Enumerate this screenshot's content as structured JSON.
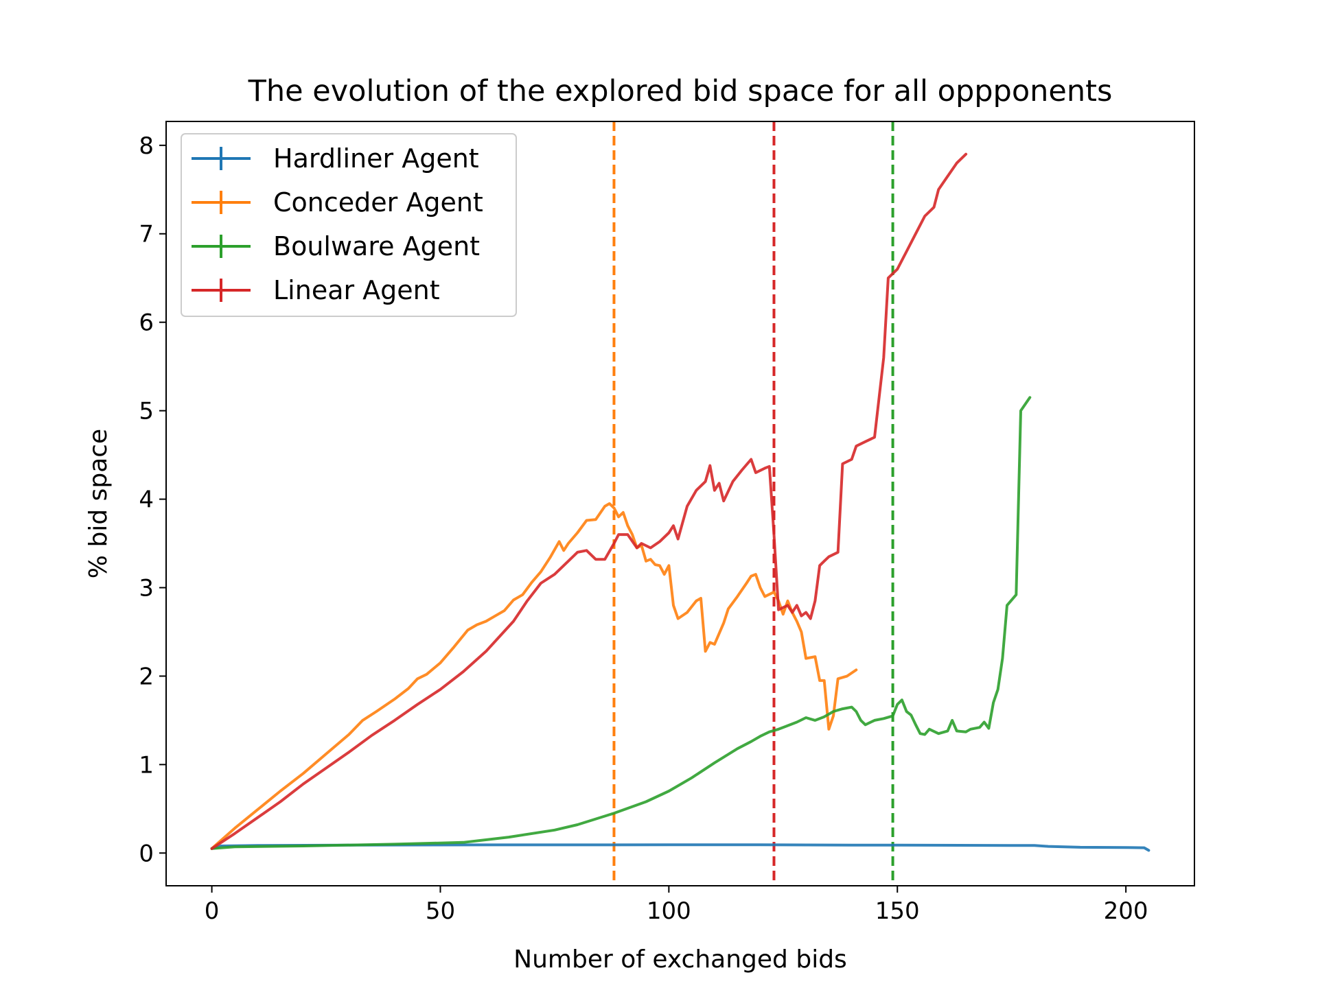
{
  "chart_data": {
    "type": "line",
    "title": "The evolution of the explored bid space for all oppponents",
    "xlabel": "Number of exchanged bids",
    "ylabel": "% bid space",
    "xlim": [
      -10,
      215
    ],
    "ylim": [
      -0.37,
      8.27
    ],
    "xticks": [
      0,
      50,
      100,
      150,
      200
    ],
    "yticks": [
      0,
      1,
      2,
      3,
      4,
      5,
      6,
      7,
      8
    ],
    "legend_position": "upper-left",
    "series": [
      {
        "name": "Hardliner Agent",
        "color": "#1f77b4",
        "points": [
          [
            0,
            0.05
          ],
          [
            2,
            0.08
          ],
          [
            10,
            0.085
          ],
          [
            30,
            0.09
          ],
          [
            60,
            0.092
          ],
          [
            100,
            0.093
          ],
          [
            120,
            0.093
          ],
          [
            140,
            0.09
          ],
          [
            150,
            0.09
          ],
          [
            175,
            0.085
          ],
          [
            180,
            0.085
          ],
          [
            183,
            0.075
          ],
          [
            190,
            0.065
          ],
          [
            200,
            0.063
          ],
          [
            204,
            0.06
          ],
          [
            205,
            0.03
          ]
        ]
      },
      {
        "name": "Conceder Agent",
        "color": "#ff7f0e",
        "points": [
          [
            0,
            0.05
          ],
          [
            5,
            0.28
          ],
          [
            10,
            0.49
          ],
          [
            15,
            0.7
          ],
          [
            20,
            0.9
          ],
          [
            25,
            1.12
          ],
          [
            30,
            1.34
          ],
          [
            33,
            1.5
          ],
          [
            36,
            1.6
          ],
          [
            40,
            1.74
          ],
          [
            43,
            1.86
          ],
          [
            45,
            1.97
          ],
          [
            47,
            2.02
          ],
          [
            50,
            2.15
          ],
          [
            53,
            2.33
          ],
          [
            56,
            2.52
          ],
          [
            58,
            2.58
          ],
          [
            60,
            2.62
          ],
          [
            62,
            2.68
          ],
          [
            64,
            2.74
          ],
          [
            66,
            2.86
          ],
          [
            68,
            2.92
          ],
          [
            70,
            3.06
          ],
          [
            72,
            3.18
          ],
          [
            74,
            3.34
          ],
          [
            76,
            3.52
          ],
          [
            77,
            3.42
          ],
          [
            78,
            3.5
          ],
          [
            80,
            3.62
          ],
          [
            82,
            3.76
          ],
          [
            84,
            3.77
          ],
          [
            86,
            3.92
          ],
          [
            87,
            3.95
          ],
          [
            88,
            3.9
          ],
          [
            89,
            3.8
          ],
          [
            90,
            3.85
          ],
          [
            91,
            3.7
          ],
          [
            92,
            3.6
          ],
          [
            93,
            3.45
          ],
          [
            94,
            3.48
          ],
          [
            95,
            3.3
          ],
          [
            96,
            3.32
          ],
          [
            97,
            3.26
          ],
          [
            98,
            3.25
          ],
          [
            99,
            3.15
          ],
          [
            100,
            3.25
          ],
          [
            101,
            2.8
          ],
          [
            102,
            2.65
          ],
          [
            104,
            2.72
          ],
          [
            106,
            2.85
          ],
          [
            107,
            2.88
          ],
          [
            108,
            2.28
          ],
          [
            109,
            2.38
          ],
          [
            110,
            2.36
          ],
          [
            112,
            2.6
          ],
          [
            113,
            2.76
          ],
          [
            115,
            2.9
          ],
          [
            117,
            3.05
          ],
          [
            118,
            3.13
          ],
          [
            119,
            3.15
          ],
          [
            120,
            3.0
          ],
          [
            121,
            2.9
          ],
          [
            123,
            2.95
          ],
          [
            124,
            2.85
          ],
          [
            125,
            2.7
          ],
          [
            126,
            2.85
          ],
          [
            127,
            2.72
          ],
          [
            128,
            2.62
          ],
          [
            129,
            2.5
          ],
          [
            130,
            2.2
          ],
          [
            132,
            2.22
          ],
          [
            133,
            1.95
          ],
          [
            134,
            1.95
          ],
          [
            135,
            1.4
          ],
          [
            136,
            1.55
          ],
          [
            137,
            1.97
          ],
          [
            139,
            2.0
          ],
          [
            141,
            2.07
          ]
        ]
      },
      {
        "name": "Boulware Agent",
        "color": "#2ca02c",
        "points": [
          [
            0,
            0.05
          ],
          [
            5,
            0.07
          ],
          [
            20,
            0.08
          ],
          [
            40,
            0.1
          ],
          [
            55,
            0.12
          ],
          [
            65,
            0.18
          ],
          [
            75,
            0.26
          ],
          [
            80,
            0.32
          ],
          [
            88,
            0.45
          ],
          [
            95,
            0.58
          ],
          [
            100,
            0.7
          ],
          [
            105,
            0.85
          ],
          [
            110,
            1.02
          ],
          [
            115,
            1.18
          ],
          [
            118,
            1.26
          ],
          [
            120,
            1.32
          ],
          [
            122,
            1.37
          ],
          [
            124,
            1.4
          ],
          [
            126,
            1.44
          ],
          [
            128,
            1.48
          ],
          [
            130,
            1.53
          ],
          [
            132,
            1.5
          ],
          [
            134,
            1.54
          ],
          [
            136,
            1.6
          ],
          [
            138,
            1.63
          ],
          [
            140,
            1.65
          ],
          [
            141,
            1.6
          ],
          [
            142,
            1.5
          ],
          [
            143,
            1.45
          ],
          [
            145,
            1.5
          ],
          [
            147,
            1.52
          ],
          [
            149,
            1.55
          ],
          [
            150,
            1.68
          ],
          [
            151,
            1.73
          ],
          [
            152,
            1.6
          ],
          [
            153,
            1.56
          ],
          [
            154,
            1.45
          ],
          [
            155,
            1.35
          ],
          [
            156,
            1.34
          ],
          [
            157,
            1.4
          ],
          [
            159,
            1.35
          ],
          [
            161,
            1.38
          ],
          [
            162,
            1.5
          ],
          [
            163,
            1.38
          ],
          [
            165,
            1.37
          ],
          [
            166,
            1.4
          ],
          [
            168,
            1.42
          ],
          [
            169,
            1.48
          ],
          [
            170,
            1.41
          ],
          [
            171,
            1.7
          ],
          [
            172,
            1.85
          ],
          [
            173,
            2.2
          ],
          [
            174,
            2.8
          ],
          [
            176,
            2.92
          ],
          [
            177,
            5.0
          ],
          [
            179,
            5.15
          ]
        ]
      },
      {
        "name": "Linear Agent",
        "color": "#d62728",
        "points": [
          [
            0,
            0.05
          ],
          [
            5,
            0.22
          ],
          [
            10,
            0.4
          ],
          [
            15,
            0.58
          ],
          [
            20,
            0.78
          ],
          [
            25,
            0.96
          ],
          [
            30,
            1.14
          ],
          [
            35,
            1.33
          ],
          [
            40,
            1.5
          ],
          [
            45,
            1.68
          ],
          [
            50,
            1.85
          ],
          [
            55,
            2.05
          ],
          [
            60,
            2.28
          ],
          [
            63,
            2.45
          ],
          [
            66,
            2.62
          ],
          [
            69,
            2.85
          ],
          [
            72,
            3.05
          ],
          [
            75,
            3.15
          ],
          [
            78,
            3.3
          ],
          [
            80,
            3.4
          ],
          [
            82,
            3.42
          ],
          [
            84,
            3.32
          ],
          [
            86,
            3.32
          ],
          [
            88,
            3.5
          ],
          [
            89,
            3.6
          ],
          [
            91,
            3.6
          ],
          [
            93,
            3.45
          ],
          [
            94,
            3.5
          ],
          [
            96,
            3.45
          ],
          [
            98,
            3.52
          ],
          [
            100,
            3.62
          ],
          [
            101,
            3.7
          ],
          [
            102,
            3.55
          ],
          [
            104,
            3.92
          ],
          [
            106,
            4.1
          ],
          [
            108,
            4.2
          ],
          [
            109,
            4.38
          ],
          [
            110,
            4.1
          ],
          [
            111,
            4.18
          ],
          [
            112,
            3.98
          ],
          [
            114,
            4.2
          ],
          [
            116,
            4.33
          ],
          [
            118,
            4.45
          ],
          [
            119,
            4.3
          ],
          [
            121,
            4.35
          ],
          [
            122,
            4.37
          ],
          [
            123,
            3.6
          ],
          [
            124,
            2.75
          ],
          [
            126,
            2.8
          ],
          [
            127,
            2.72
          ],
          [
            128,
            2.8
          ],
          [
            129,
            2.68
          ],
          [
            130,
            2.72
          ],
          [
            131,
            2.65
          ],
          [
            132,
            2.85
          ],
          [
            133,
            3.25
          ],
          [
            134,
            3.3
          ],
          [
            135,
            3.35
          ],
          [
            137,
            3.4
          ],
          [
            138,
            4.4
          ],
          [
            140,
            4.45
          ],
          [
            141,
            4.6
          ],
          [
            143,
            4.65
          ],
          [
            145,
            4.7
          ],
          [
            147,
            5.6
          ],
          [
            148,
            6.5
          ],
          [
            150,
            6.6
          ],
          [
            152,
            6.8
          ],
          [
            154,
            7.0
          ],
          [
            156,
            7.2
          ],
          [
            158,
            7.3
          ],
          [
            159,
            7.5
          ],
          [
            161,
            7.65
          ],
          [
            163,
            7.8
          ],
          [
            165,
            7.9
          ]
        ]
      }
    ],
    "vlines": [
      {
        "x": 88,
        "color": "#ff7f0e"
      },
      {
        "x": 123,
        "color": "#d62728"
      },
      {
        "x": 149,
        "color": "#2ca02c"
      }
    ]
  }
}
